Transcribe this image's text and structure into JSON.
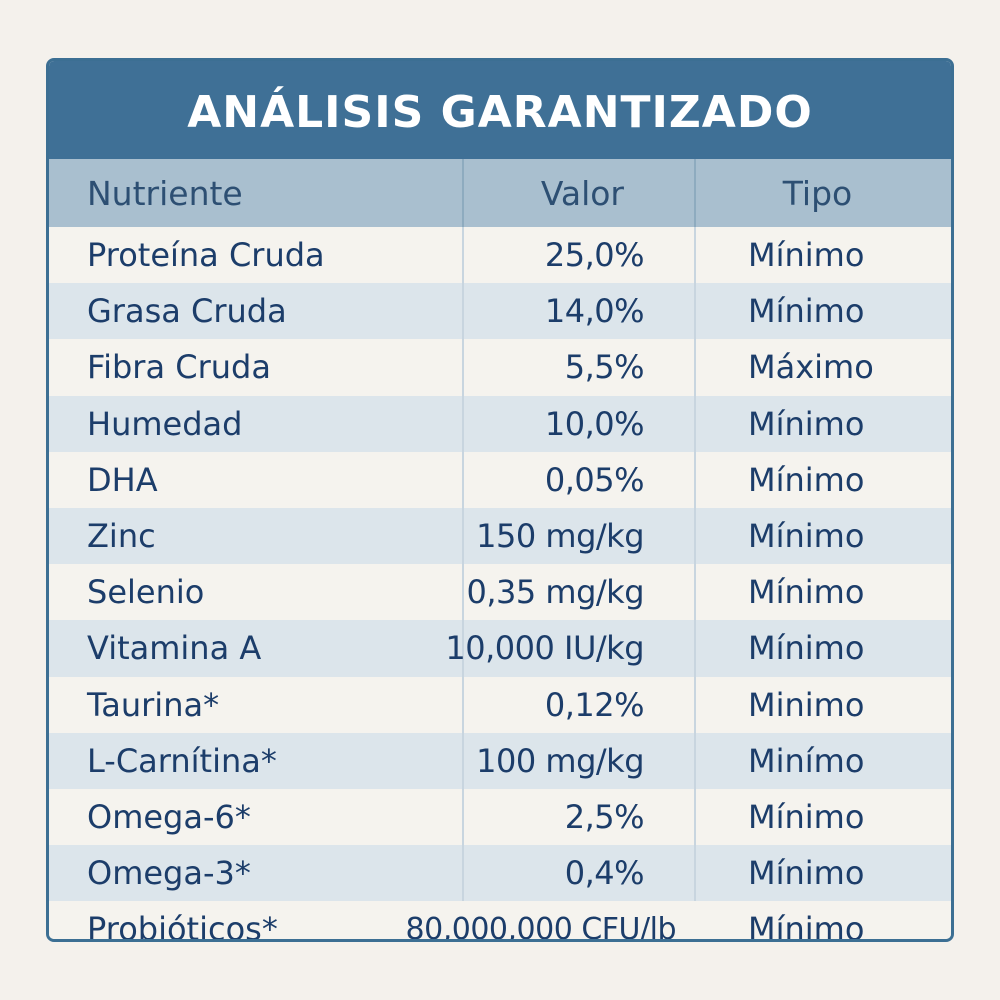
{
  "title": "ANÁLISIS GARANTIZADO",
  "columns": {
    "nutrient": "Nutriente",
    "value": "Valor",
    "type": "Tipo"
  },
  "rows": [
    {
      "nutrient": "Proteína Cruda",
      "value": "25,0%",
      "type": "Mínimo"
    },
    {
      "nutrient": "Grasa Cruda",
      "value": "14,0%",
      "type": "Mínimo"
    },
    {
      "nutrient": "Fibra Cruda",
      "value": "5,5%",
      "type": "Máximo"
    },
    {
      "nutrient": "Humedad",
      "value": "10,0%",
      "type": "Mínimo"
    },
    {
      "nutrient": "DHA",
      "value": "0,05%",
      "type": "Mínimo"
    },
    {
      "nutrient": "Zinc",
      "value": "150 mg/kg",
      "type": "Mínimo"
    },
    {
      "nutrient": "Selenio",
      "value": "0,35 mg/kg",
      "type": "Mínimo"
    },
    {
      "nutrient": "Vitamina A",
      "value": "10,000 IU/kg",
      "type": "Mínimo"
    },
    {
      "nutrient": "Taurina*",
      "value": "0,12%",
      "type": "Minimo"
    },
    {
      "nutrient": "L-Carnítina*",
      "value": "100 mg/kg",
      "type": "Minímo"
    },
    {
      "nutrient": "Omega-6*",
      "value": "2,5%",
      "type": "Mínimo"
    },
    {
      "nutrient": "Omega-3*",
      "value": "0,4%",
      "type": "Mínimo"
    },
    {
      "nutrient": "Probióticos*",
      "value": "80,000,000 CFU/lb",
      "type": "Mínimo"
    }
  ],
  "colors": {
    "title_bar": "#3f7096",
    "header_row": "#a9bfcf",
    "alt_row": "#dce5eb",
    "text": "#1c3d6a"
  }
}
